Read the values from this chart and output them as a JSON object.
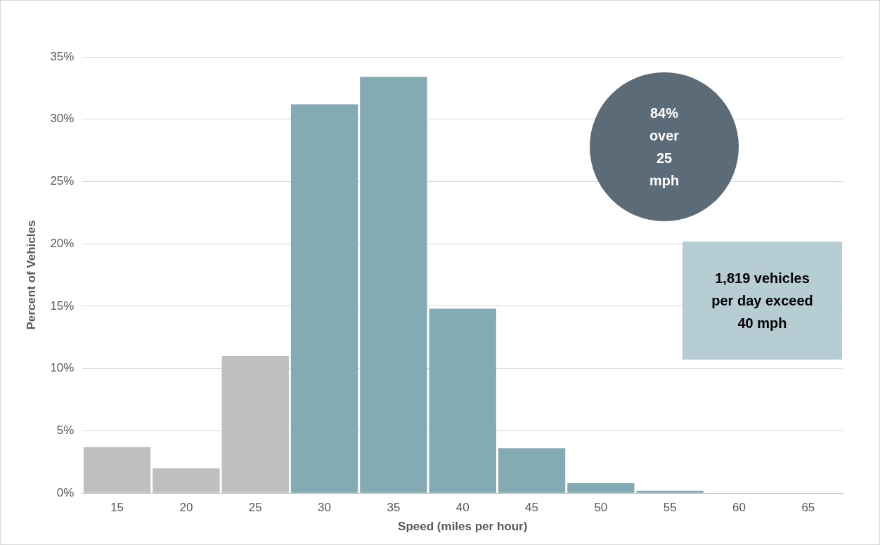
{
  "chart_data": {
    "type": "bar",
    "xlabel": "Speed (miles per hour)",
    "ylabel": "Percent of Vehicles",
    "categories": [
      "15",
      "20",
      "25",
      "30",
      "35",
      "40",
      "45",
      "50",
      "55",
      "60",
      "65"
    ],
    "values": [
      3.7,
      2.0,
      11.0,
      31.2,
      33.4,
      14.8,
      3.6,
      0.8,
      0.2,
      0,
      0
    ],
    "colors": [
      "#bfbfbf",
      "#bfbfbf",
      "#bfbfbf",
      "#84aab4",
      "#84aab4",
      "#84aab4",
      "#84aab4",
      "#84aab4",
      "#84aab4",
      "#84aab4",
      "#84aab4"
    ],
    "ylim": [
      0,
      35
    ],
    "yticks": [
      {
        "value": 0,
        "label": "0%"
      },
      {
        "value": 5,
        "label": "5%"
      },
      {
        "value": 10,
        "label": "10%"
      },
      {
        "value": 15,
        "label": "15%"
      },
      {
        "value": 20,
        "label": "20%"
      },
      {
        "value": 25,
        "label": "25%"
      },
      {
        "value": 30,
        "label": "30%"
      },
      {
        "value": 35,
        "label": "35%"
      }
    ],
    "grid": "y",
    "legend": false,
    "annotations": [
      "84% over 25 mph",
      "1,819 vehicles per day exceed 40 mph"
    ]
  }
}
